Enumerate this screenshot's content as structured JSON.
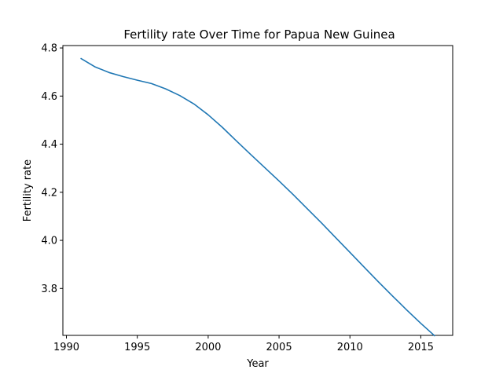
{
  "chart_data": {
    "type": "line",
    "title": "Fertility rate Over Time for Papua New Guinea",
    "xlabel": "Year",
    "ylabel": "Fertility rate",
    "xlim": [
      1989.75,
      2017.25
    ],
    "ylim": [
      3.605,
      4.81
    ],
    "grid": false,
    "x_ticks": [
      1990,
      1995,
      2000,
      2005,
      2010,
      2015
    ],
    "y_ticks": [
      3.8,
      4.0,
      4.2,
      4.4,
      4.6,
      4.8
    ],
    "series": [
      {
        "color": "#1f77b4",
        "x": [
          1991,
          1992,
          1993,
          1994,
          1995,
          1996,
          1997,
          1998,
          1999,
          2000,
          2001,
          2002,
          2003,
          2004,
          2005,
          2006,
          2007,
          2008,
          2009,
          2010,
          2011,
          2012,
          2013,
          2014,
          2015,
          2016
        ],
        "y": [
          4.757,
          4.722,
          4.698,
          4.681,
          4.666,
          4.652,
          4.63,
          4.602,
          4.567,
          4.522,
          4.47,
          4.413,
          4.357,
          4.302,
          4.247,
          4.19,
          4.131,
          4.072,
          4.011,
          3.95,
          3.889,
          3.828,
          3.769,
          3.711,
          3.655,
          3.602
        ]
      }
    ]
  }
}
